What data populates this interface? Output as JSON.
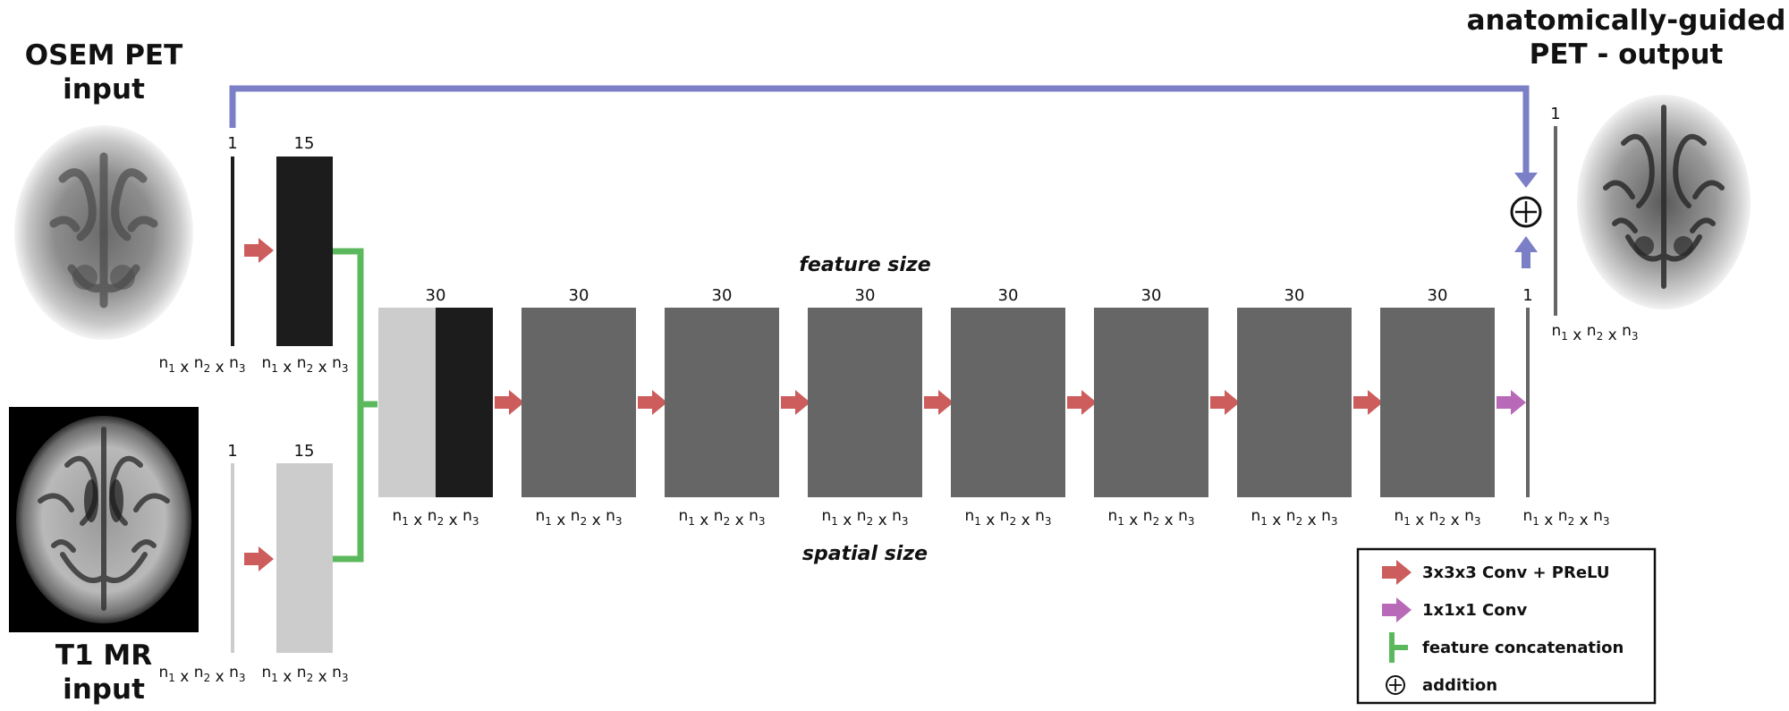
{
  "titles": {
    "osem_line1": "OSEM PET",
    "osem_line2": "input",
    "mr_line1": "T1 MR",
    "mr_line2": "input",
    "output_line1": "anatomically-guided",
    "output_line2": "PET - output"
  },
  "axis_labels": {
    "feature": "feature size",
    "spatial": "spatial size"
  },
  "dims": {
    "n": "n",
    "sub1": "1",
    "sub2": "2",
    "sub3": "3",
    "sep": " x "
  },
  "pet_input": {
    "channels": "1",
    "conv_channels": "15"
  },
  "mr_input": {
    "channels": "1",
    "conv_channels": "15"
  },
  "blocks": [
    {
      "channels": "30"
    },
    {
      "channels": "30"
    },
    {
      "channels": "30"
    },
    {
      "channels": "30"
    },
    {
      "channels": "30"
    },
    {
      "channels": "30"
    },
    {
      "channels": "30"
    },
    {
      "channels": "30"
    }
  ],
  "output_conv": {
    "channels": "1"
  },
  "output_final": {
    "channels": "1"
  },
  "legend": {
    "items": [
      {
        "label": "3x3x3 Conv + PReLU",
        "color": "#cd5c5c"
      },
      {
        "label": "1x1x1 Conv",
        "color": "#b86ab8"
      },
      {
        "label": "feature concatenation",
        "color": "#5cb85c"
      },
      {
        "label": "addition",
        "color": "#111111"
      }
    ]
  },
  "colors": {
    "conv_arrow": "#cd5c5c",
    "conv1_arrow": "#b86ab8",
    "concat": "#5cb85c",
    "skip": "#7b7fc6",
    "dark_block": "#1c1c1c",
    "light_block": "#cccccc",
    "mid_block": "#666666"
  }
}
